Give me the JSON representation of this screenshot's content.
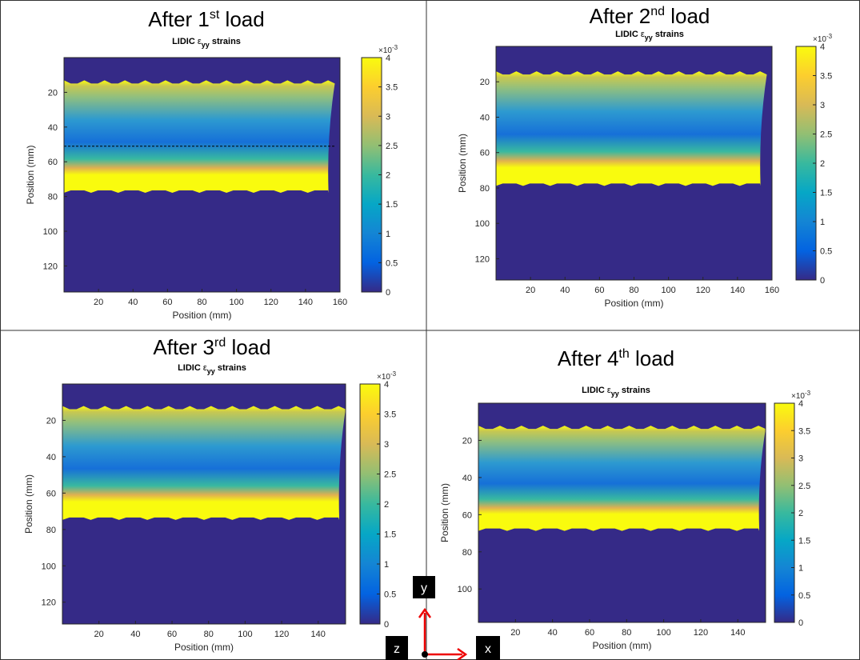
{
  "chart_data": [
    {
      "type": "heatmap",
      "title": {
        "prefix": "After 1",
        "sup": "st",
        "suffix": " load"
      },
      "subtitle": {
        "prefix": "LIDIC ",
        "symbol": "ε",
        "sub": "yy",
        "suffix": " strains"
      },
      "x_label": "Position (mm)",
      "y_label": "Position (mm)",
      "xlim": [
        0,
        160
      ],
      "xticks": [
        20,
        40,
        60,
        80,
        100,
        120,
        140,
        160
      ],
      "ylim": [
        0,
        135
      ],
      "yticks": [
        20,
        40,
        60,
        80,
        100,
        120
      ],
      "clim": [
        0,
        4
      ],
      "cticks": [
        0,
        0.5,
        1,
        1.5,
        2,
        2.5,
        3,
        3.5,
        4
      ],
      "colorbar_scale": {
        "base": "×10",
        "exp": "-3"
      }
    },
    {
      "type": "heatmap",
      "title": {
        "prefix": "After 2",
        "sup": "nd",
        "suffix": " load"
      },
      "subtitle": {
        "prefix": "LIDIC ",
        "symbol": "ε",
        "sub": "yy",
        "suffix": " strains"
      },
      "x_label": "Position (mm)",
      "y_label": "Position (mm)",
      "xlim": [
        0,
        160
      ],
      "xticks": [
        20,
        40,
        60,
        80,
        100,
        120,
        140,
        160
      ],
      "ylim": [
        0,
        132
      ],
      "yticks": [
        20,
        40,
        60,
        80,
        100,
        120
      ],
      "clim": [
        0,
        4
      ],
      "cticks": [
        0,
        0.5,
        1,
        1.5,
        2,
        2.5,
        3,
        3.5,
        4
      ],
      "colorbar_scale": {
        "base": "×10",
        "exp": "-3"
      }
    },
    {
      "type": "heatmap",
      "title": {
        "prefix": "After 3",
        "sup": "rd",
        "suffix": " load"
      },
      "subtitle": {
        "prefix": "LIDIC ",
        "symbol": "ε",
        "sub": "yy",
        "suffix": " strains"
      },
      "x_label": "Position (mm)",
      "y_label": "Position (mm)",
      "xlim": [
        0,
        155
      ],
      "xticks": [
        20,
        40,
        60,
        80,
        100,
        120,
        140
      ],
      "ylim": [
        0,
        132
      ],
      "yticks": [
        20,
        40,
        60,
        80,
        100,
        120
      ],
      "clim": [
        0,
        4
      ],
      "cticks": [
        0,
        0.5,
        1,
        1.5,
        2,
        2.5,
        3,
        3.5,
        4
      ],
      "colorbar_scale": {
        "base": "×10",
        "exp": "-3"
      }
    },
    {
      "type": "heatmap",
      "title": {
        "prefix": "After 4",
        "sup": "th",
        "suffix": " load"
      },
      "subtitle": {
        "prefix": "LIDIC ",
        "symbol": "ε",
        "sub": "yy",
        "suffix": " strains"
      },
      "x_label": "Position (mm)",
      "y_label": "Position (mm)",
      "xlim": [
        0,
        155
      ],
      "xticks": [
        20,
        40,
        60,
        80,
        100,
        120,
        140
      ],
      "ylim": [
        0,
        118
      ],
      "yticks": [
        20,
        40,
        60,
        80,
        100
      ],
      "clim": [
        0,
        4
      ],
      "cticks": [
        0,
        0.5,
        1,
        1.5,
        2,
        2.5,
        3,
        3.5,
        4
      ],
      "colorbar_scale": {
        "base": "×10",
        "exp": "-3"
      }
    }
  ],
  "axes_icon": {
    "y": "y",
    "z": "z",
    "x": "x"
  }
}
